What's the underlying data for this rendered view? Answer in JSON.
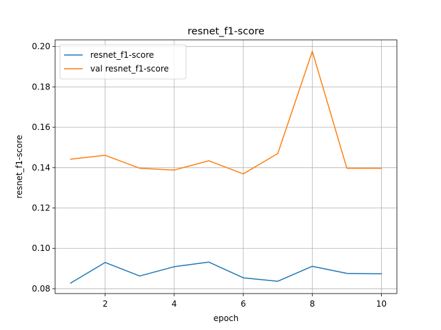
{
  "chart_data": {
    "type": "line",
    "title": "resnet_f1-score",
    "xlabel": "epoch",
    "ylabel": "resnet_f1-score",
    "x": [
      1,
      2,
      3,
      4,
      5,
      6,
      7,
      8,
      9,
      10
    ],
    "xlim": [
      0.55,
      10.45
    ],
    "ylim": [
      0.0776,
      0.2033
    ],
    "x_ticks": [
      2,
      4,
      6,
      8,
      10
    ],
    "x_tick_labels": [
      "2",
      "4",
      "6",
      "8",
      "10"
    ],
    "y_ticks": [
      0.08,
      0.1,
      0.12,
      0.14,
      0.16,
      0.18,
      0.2
    ],
    "y_tick_labels": [
      "0.08",
      "0.10",
      "0.12",
      "0.14",
      "0.16",
      "0.18",
      "0.20"
    ],
    "grid": true,
    "legend_position": "top-left",
    "series": [
      {
        "name": "resnet_f1-score",
        "color": "#1f77b4",
        "values": [
          0.0828,
          0.093,
          0.0863,
          0.0909,
          0.0932,
          0.0854,
          0.0837,
          0.0911,
          0.0876,
          0.0874
        ]
      },
      {
        "name": "val resnet_f1-score",
        "color": "#ff7f0e",
        "values": [
          0.1442,
          0.1461,
          0.1397,
          0.1388,
          0.1434,
          0.1369,
          0.147,
          0.1976,
          0.1397,
          0.1397
        ]
      }
    ]
  }
}
